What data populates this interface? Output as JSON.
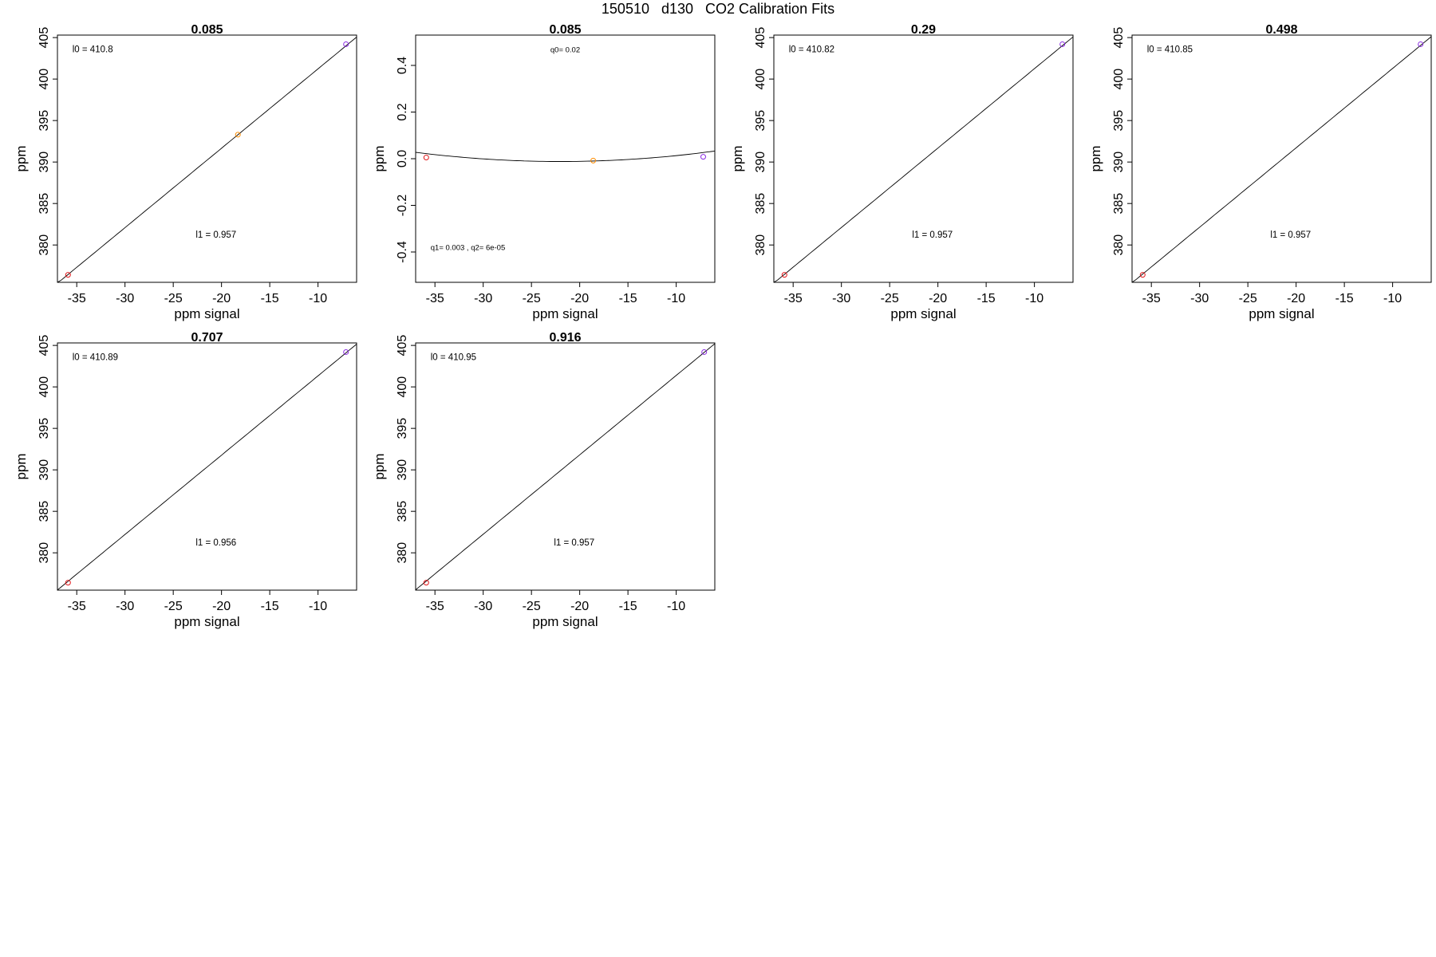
{
  "main_title": "150510   d130   CO2 Calibration Fits",
  "chart_data": [
    {
      "type": "scatter",
      "title": "0.085",
      "xlabel": "ppm signal",
      "ylabel": "ppm",
      "xlim": [
        -37,
        -6
      ],
      "ylim": [
        375.5,
        405.3
      ],
      "xticks": [
        "-35",
        "-30",
        "-25",
        "-20",
        "-15",
        "-10"
      ],
      "yticks": [
        "380",
        "385",
        "390",
        "395",
        "400",
        "405"
      ],
      "fit": {
        "type": "linear",
        "intercept": 410.8,
        "slope": 0.957
      },
      "points": [
        {
          "x": -35.9,
          "y": 376.4,
          "color": "#e31a1c"
        },
        {
          "x": -18.3,
          "y": 393.3,
          "color": "#ff8c00"
        },
        {
          "x": -7.1,
          "y": 404.2,
          "color": "#8a2be2"
        }
      ],
      "annotations": [
        "l0 =  410.8",
        "l1 =  0.957"
      ]
    },
    {
      "type": "scatter",
      "title": "0.085",
      "xlabel": "ppm signal",
      "ylabel": "ppm",
      "xlim": [
        -37,
        -6
      ],
      "ylim": [
        -0.53,
        0.53
      ],
      "xticks": [
        "-35",
        "-30",
        "-25",
        "-20",
        "-15",
        "-10"
      ],
      "yticks": [
        "-0.4",
        "-0.2",
        "0.0",
        "0.2",
        "0.4"
      ],
      "fit": {
        "type": "quadratic",
        "q0": 0.02,
        "q1": 0.003,
        "q2": 6e-05
      },
      "points": [
        {
          "x": -35.9,
          "y": 0.005,
          "color": "#e31a1c"
        },
        {
          "x": -18.6,
          "y": -0.008,
          "color": "#ff8c00"
        },
        {
          "x": -7.2,
          "y": 0.008,
          "color": "#8a2be2"
        }
      ],
      "annotations": [
        "q0= 0.02",
        "q1= 0.003 , q2= 6e-05"
      ]
    },
    {
      "type": "scatter",
      "title": "0.29",
      "xlabel": "ppm signal",
      "ylabel": "ppm",
      "xlim": [
        -37,
        -6
      ],
      "ylim": [
        375.5,
        405.3
      ],
      "xticks": [
        "-35",
        "-30",
        "-25",
        "-20",
        "-15",
        "-10"
      ],
      "yticks": [
        "380",
        "385",
        "390",
        "395",
        "400",
        "405"
      ],
      "fit": {
        "type": "linear",
        "intercept": 410.82,
        "slope": 0.957
      },
      "points": [
        {
          "x": -35.9,
          "y": 376.4,
          "color": "#e31a1c"
        },
        {
          "x": -7.1,
          "y": 404.2,
          "color": "#8a2be2"
        }
      ],
      "annotations": [
        "l0 =  410.82",
        "l1 =  0.957"
      ]
    },
    {
      "type": "scatter",
      "title": "0.498",
      "xlabel": "ppm signal",
      "ylabel": "ppm",
      "xlim": [
        -37,
        -6
      ],
      "ylim": [
        375.5,
        405.3
      ],
      "xticks": [
        "-35",
        "-30",
        "-25",
        "-20",
        "-15",
        "-10"
      ],
      "yticks": [
        "380",
        "385",
        "390",
        "395",
        "400",
        "405"
      ],
      "fit": {
        "type": "linear",
        "intercept": 410.85,
        "slope": 0.957
      },
      "points": [
        {
          "x": -35.9,
          "y": 376.4,
          "color": "#e31a1c"
        },
        {
          "x": -7.1,
          "y": 404.2,
          "color": "#8a2be2"
        }
      ],
      "annotations": [
        "l0 =  410.85",
        "l1 =  0.957"
      ]
    },
    {
      "type": "scatter",
      "title": "0.707",
      "xlabel": "ppm signal",
      "ylabel": "ppm",
      "xlim": [
        -37,
        -6
      ],
      "ylim": [
        375.5,
        405.3
      ],
      "xticks": [
        "-35",
        "-30",
        "-25",
        "-20",
        "-15",
        "-10"
      ],
      "yticks": [
        "380",
        "385",
        "390",
        "395",
        "400",
        "405"
      ],
      "fit": {
        "type": "linear",
        "intercept": 410.89,
        "slope": 0.956
      },
      "points": [
        {
          "x": -35.9,
          "y": 376.4,
          "color": "#e31a1c"
        },
        {
          "x": -7.1,
          "y": 404.2,
          "color": "#8a2be2"
        }
      ],
      "annotations": [
        "l0 =  410.89",
        "l1 =  0.956"
      ]
    },
    {
      "type": "scatter",
      "title": "0.916",
      "xlabel": "ppm signal",
      "ylabel": "ppm",
      "xlim": [
        -37,
        -6
      ],
      "ylim": [
        375.5,
        405.3
      ],
      "xticks": [
        "-35",
        "-30",
        "-25",
        "-20",
        "-15",
        "-10"
      ],
      "yticks": [
        "380",
        "385",
        "390",
        "395",
        "400",
        "405"
      ],
      "fit": {
        "type": "linear",
        "intercept": 410.95,
        "slope": 0.957
      },
      "points": [
        {
          "x": -35.9,
          "y": 376.4,
          "color": "#e31a1c"
        },
        {
          "x": -7.1,
          "y": 404.2,
          "color": "#8a2be2"
        }
      ],
      "annotations": [
        "l0 =  410.95",
        "l1 =  0.957"
      ]
    }
  ]
}
